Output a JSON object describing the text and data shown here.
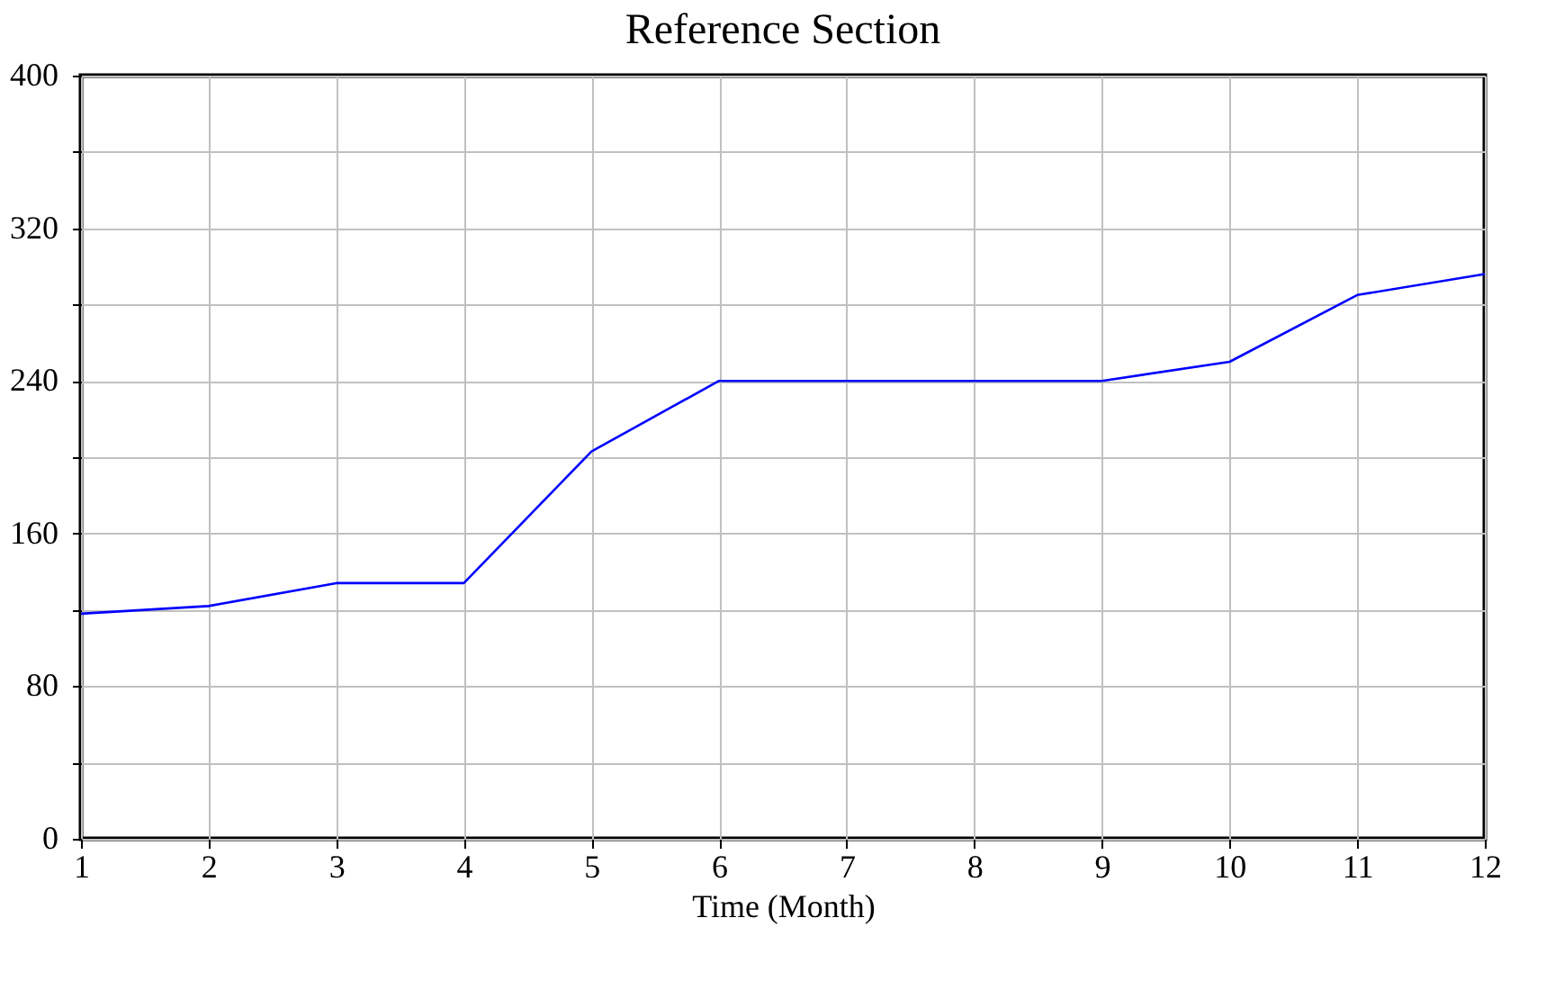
{
  "chart_data": {
    "type": "line",
    "title": "Reference Section",
    "xlabel": "Time (Month)",
    "x": [
      1,
      2,
      3,
      4,
      5,
      6,
      7,
      8,
      9,
      10,
      11,
      12
    ],
    "series": [
      {
        "color": "#0000ff",
        "values": [
          118,
          122,
          134,
          134,
          203,
          240,
          240,
          240,
          240,
          250,
          285,
          296
        ]
      }
    ],
    "xlim": [
      1,
      12
    ],
    "xticks": [
      1,
      2,
      3,
      4,
      5,
      6,
      7,
      8,
      9,
      10,
      11,
      12
    ],
    "ylim": [
      0,
      400
    ],
    "yticks": [
      0,
      {
        "value": 40,
        "label": null
      },
      80,
      {
        "value": 120,
        "label": null
      },
      160,
      {
        "value": 200,
        "label": null
      },
      240,
      {
        "value": 280,
        "label": null
      },
      320,
      {
        "value": 360,
        "label": null
      },
      400
    ],
    "grid": true,
    "legend": false,
    "marker": "none",
    "line_style": "solid"
  }
}
